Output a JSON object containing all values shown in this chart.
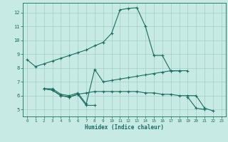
{
  "xlabel": "Humidex (Indice chaleur)",
  "background_color": "#c8eae4",
  "line_color": "#1a6b60",
  "grid_color": "#a0cec7",
  "xlim": [
    -0.5,
    23.5
  ],
  "ylim": [
    4.5,
    12.7
  ],
  "yticks": [
    5,
    6,
    7,
    8,
    9,
    10,
    11,
    12
  ],
  "xticks": [
    0,
    1,
    2,
    3,
    4,
    5,
    6,
    7,
    8,
    9,
    10,
    11,
    12,
    13,
    14,
    15,
    16,
    17,
    18,
    19,
    20,
    21,
    22,
    23
  ],
  "curve1_x": [
    0,
    1,
    2,
    3,
    4,
    5,
    6,
    7,
    8,
    9,
    10,
    11,
    12,
    13,
    14,
    15,
    16,
    17,
    18,
    19
  ],
  "curve1_y": [
    8.6,
    8.1,
    8.3,
    8.5,
    8.7,
    8.9,
    9.1,
    9.3,
    9.6,
    9.85,
    10.5,
    12.2,
    12.3,
    12.35,
    11.0,
    8.9,
    8.9,
    7.78,
    7.8,
    7.8
  ],
  "curve2_x": [
    2,
    3,
    4,
    5,
    6,
    7,
    8,
    9,
    10,
    11,
    12,
    13,
    14,
    15,
    16,
    17,
    18
  ],
  "curve2_y": [
    6.5,
    6.5,
    6.1,
    6.0,
    6.2,
    5.4,
    7.9,
    7.0,
    7.1,
    7.2,
    7.3,
    7.4,
    7.5,
    7.6,
    7.7,
    7.8,
    7.8
  ],
  "curve3_x": [
    2,
    3,
    4,
    5,
    6,
    7,
    8
  ],
  "curve3_y": [
    6.5,
    6.4,
    6.0,
    5.9,
    6.1,
    5.3,
    5.3
  ],
  "curve4_x": [
    2,
    3,
    4,
    5,
    6,
    7,
    8,
    9,
    10,
    11,
    12,
    13,
    14,
    15,
    16,
    17,
    18,
    19,
    20,
    21,
    22
  ],
  "curve4_y": [
    6.5,
    6.4,
    6.0,
    5.9,
    6.1,
    6.2,
    6.3,
    6.3,
    6.3,
    6.3,
    6.3,
    6.3,
    6.2,
    6.2,
    6.1,
    6.1,
    6.0,
    6.0,
    6.0,
    5.1,
    4.9
  ],
  "curve5_x": [
    19,
    20,
    21
  ],
  "curve5_y": [
    5.9,
    5.1,
    5.0
  ]
}
